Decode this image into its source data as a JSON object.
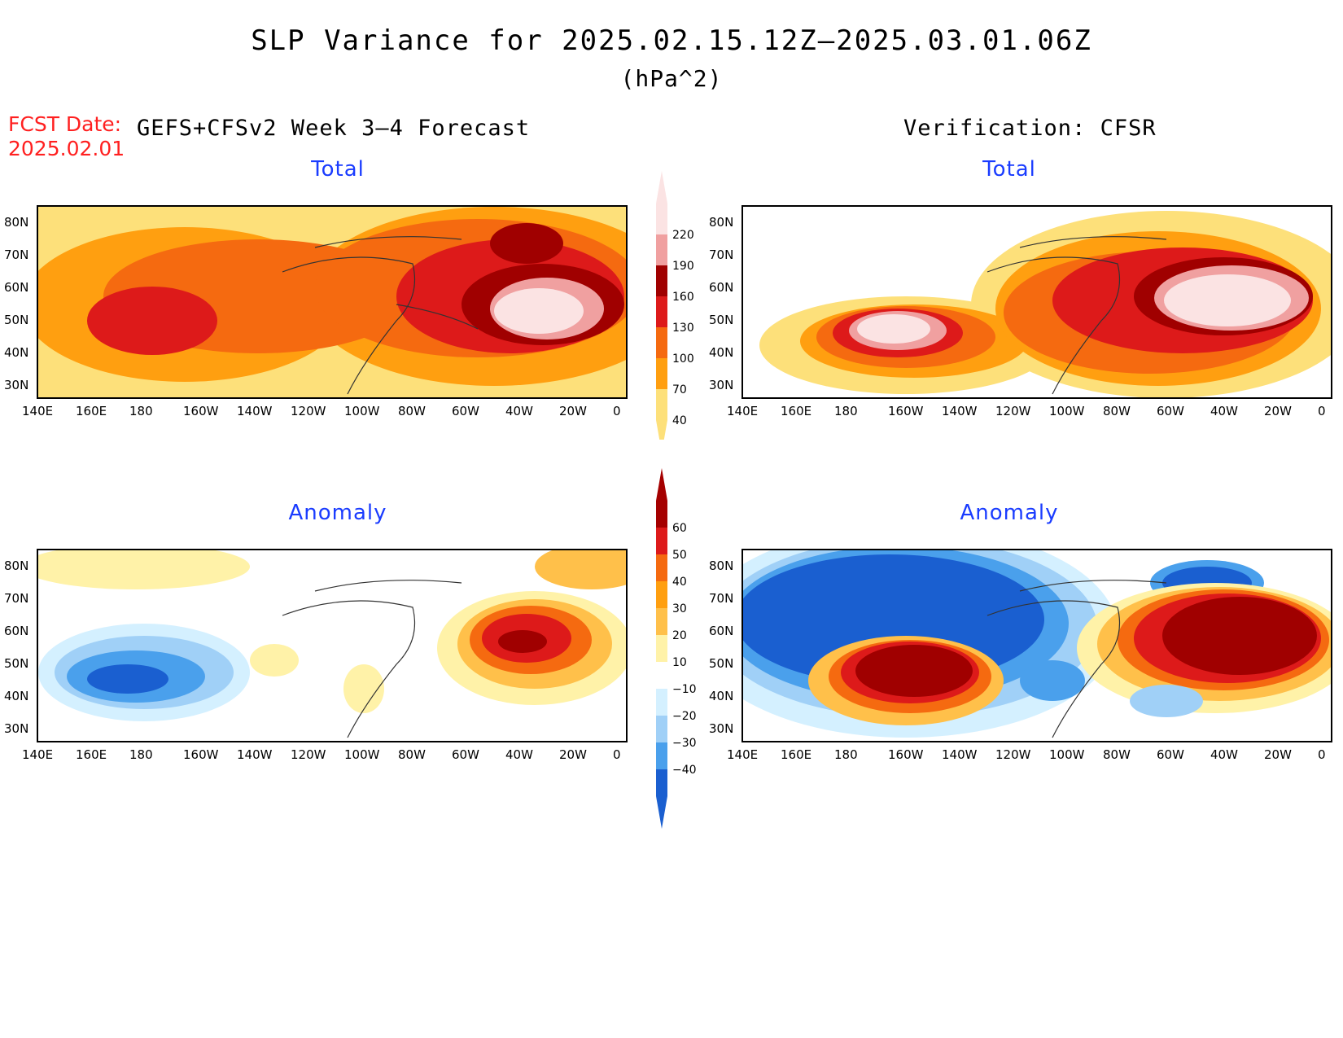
{
  "header": {
    "title": "SLP Variance for 2025.02.15.12Z–2025.03.01.06Z",
    "units": "(hPa^2)",
    "fcst_label": "FCST Date:",
    "fcst_date": "2025.02.01",
    "left_heading": "GEFS+CFSv2 Week 3–4 Forecast",
    "right_heading": "Verification: CFSR"
  },
  "panels": {
    "top_left_title": "Total",
    "top_right_title": "Total",
    "bottom_left_title": "Anomaly",
    "bottom_right_title": "Anomaly"
  },
  "axes": {
    "lat_labels": [
      "80N",
      "70N",
      "60N",
      "50N",
      "40N",
      "30N"
    ],
    "lon_labels": [
      "140E",
      "160E",
      "180",
      "160W",
      "140W",
      "120W",
      "100W",
      "80W",
      "60W",
      "40W",
      "20W",
      "0"
    ]
  },
  "colorbars": {
    "total": {
      "labels": [
        "220",
        "190",
        "160",
        "130",
        "100",
        "70",
        "40"
      ],
      "colors": [
        "#fbe3e3",
        "#f0a0a0",
        "#a00000",
        "#dd1a1a",
        "#f56a10",
        "#ff9f10",
        "#fde07a"
      ]
    },
    "anomaly": {
      "labels": [
        "60",
        "50",
        "40",
        "30",
        "20",
        "10",
        "−10",
        "−20",
        "−30",
        "−40"
      ],
      "colors": [
        "#a50000",
        "#dd1a1a",
        "#f56a10",
        "#ff9f10",
        "#ffc04a",
        "#fff2a8",
        "#ffffff",
        "#d4f0ff",
        "#a0d0f7",
        "#4aa0ec",
        "#1a5fd0"
      ]
    }
  }
}
